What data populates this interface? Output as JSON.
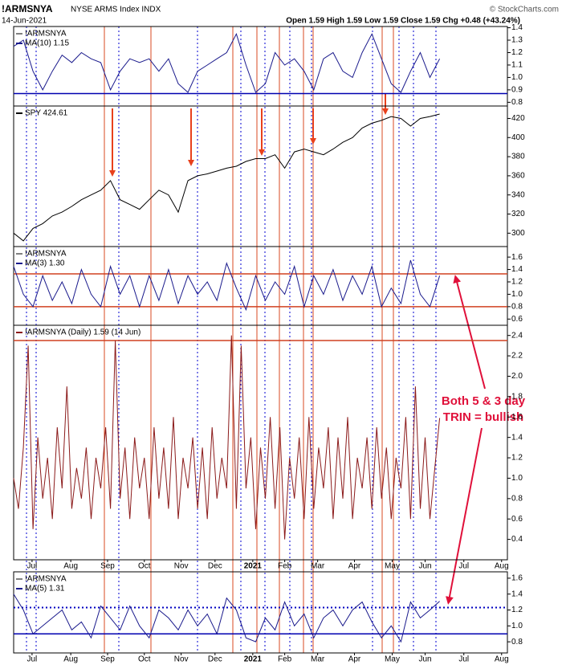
{
  "header": {
    "symbol": "!ARMSNYA",
    "name": "NYSE ARMS Index INDX",
    "date": "14-Jun-2021",
    "quote": "Open 1.59  High 1.59  Low 1.59  Close 1.59  Chg +0.48 (+43.24%)",
    "watermark": "© StockCharts.com"
  },
  "annotation": [
    "Both 5 & 3 day",
    "TRIN = bullish"
  ],
  "chart_data": [
    {
      "type": "line",
      "label": "!ARMSNYA",
      "xlim": [
        0,
        51
      ],
      "ylim": [
        0.77,
        1.41
      ],
      "yticks": [
        0.8,
        0.9,
        {
          "value": 1,
          "label": "1.0"
        },
        1.1,
        1.2,
        1.3,
        1.4
      ],
      "hlines": [
        {
          "value": 0.87,
          "color": "#0000b0",
          "style": "solid"
        }
      ],
      "series": [
        {
          "name": "MA(10) 1.15",
          "color": "#1a1a8c",
          "values": [
            1.25,
            1.3,
            1.05,
            0.9,
            1.05,
            1.18,
            1.12,
            1.2,
            1.15,
            1.12,
            0.9,
            1.05,
            1.15,
            1.12,
            1.15,
            1.05,
            1.15,
            0.95,
            0.88,
            1.05,
            1.1,
            1.15,
            1.2,
            1.35,
            1.1,
            0.88,
            0.95,
            1.2,
            1.1,
            1.15,
            1.05,
            0.9,
            1.15,
            1.2,
            1.05,
            1.0,
            1.2,
            1.35,
            1.15,
            0.95,
            0.88,
            1.05,
            1.2,
            1.0,
            1.15
          ]
        }
      ]
    },
    {
      "type": "line",
      "xlim": [
        0,
        51
      ],
      "ylim": [
        286,
        433
      ],
      "yticks": [
        300,
        320,
        340,
        360,
        380,
        400,
        420
      ],
      "series": [
        {
          "name": "SPY 424.61",
          "color": "#000000",
          "values": [
            300,
            292,
            305,
            310,
            318,
            322,
            328,
            335,
            340,
            345,
            355,
            335,
            330,
            325,
            335,
            345,
            340,
            322,
            355,
            360,
            362,
            365,
            368,
            370,
            375,
            378,
            378,
            382,
            368,
            385,
            388,
            385,
            382,
            388,
            395,
            400,
            410,
            415,
            418,
            422,
            420,
            412,
            420,
            422,
            424.61
          ]
        }
      ]
    },
    {
      "type": "line",
      "label": "!ARMSNYA",
      "xlim": [
        0,
        51
      ],
      "ylim": [
        0.5,
        1.77
      ],
      "yticks": [
        0.6,
        0.8,
        {
          "value": 1,
          "label": "1.0"
        },
        1.2,
        1.4,
        1.6
      ],
      "hlines": [
        {
          "value": 1.33,
          "color": "#d04020",
          "style": "solid"
        },
        {
          "value": 0.8,
          "color": "#d04020",
          "style": "solid"
        }
      ],
      "series": [
        {
          "name": "MA(3) 1.30",
          "color": "#1a1a8c",
          "values": [
            1.45,
            1.0,
            0.8,
            1.3,
            0.9,
            1.2,
            0.85,
            1.4,
            1.0,
            0.8,
            1.45,
            1.0,
            1.3,
            0.8,
            1.3,
            0.9,
            1.4,
            0.85,
            1.3,
            1.0,
            1.2,
            0.9,
            1.5,
            1.1,
            0.75,
            1.3,
            0.9,
            1.2,
            1.0,
            1.45,
            0.8,
            1.3,
            1.0,
            1.4,
            0.9,
            1.3,
            1.0,
            1.45,
            0.8,
            1.1,
            0.85,
            1.55,
            1.0,
            0.8,
            1.3
          ]
        }
      ]
    },
    {
      "type": "line",
      "xlim": [
        0,
        102
      ],
      "ylim": [
        0.2,
        2.5
      ],
      "yticks": [
        0.4,
        0.6,
        0.8,
        {
          "value": 1,
          "label": "1.0"
        },
        1.2,
        1.4,
        1.6,
        1.8,
        {
          "value": 2,
          "label": "2.0"
        },
        2.2,
        2.4
      ],
      "hlines": [
        {
          "value": 2.35,
          "color": "#d04020",
          "style": "solid"
        }
      ],
      "xticks": [
        {
          "value": 3.8,
          "label": "Jul"
        },
        {
          "value": 11.8,
          "label": "Aug"
        },
        {
          "value": 19.4,
          "label": "Sep"
        },
        {
          "value": 27,
          "label": "Oct"
        },
        {
          "value": 34.6,
          "label": "Nov"
        },
        {
          "value": 41.6,
          "label": "Dec"
        },
        {
          "value": 49.4,
          "label": "2021"
        },
        {
          "value": 56,
          "label": "Feb"
        },
        {
          "value": 62.8,
          "label": "Mar"
        },
        {
          "value": 70.4,
          "label": "Apr"
        },
        {
          "value": 78.2,
          "label": "May"
        },
        {
          "value": 85,
          "label": "Jun"
        },
        {
          "value": 93,
          "label": "Jul"
        },
        {
          "value": 100.8,
          "label": "Aug"
        }
      ],
      "series": [
        {
          "name": "!ARMSNYA (Daily) 1.59 (14 Jun)",
          "color": "#8b1a1a",
          "values": [
            1.0,
            0.7,
            1.3,
            2.3,
            0.5,
            1.4,
            0.8,
            1.2,
            0.6,
            1.5,
            0.9,
            1.9,
            0.7,
            1.1,
            0.8,
            1.3,
            0.6,
            1.2,
            0.9,
            1.5,
            0.7,
            2.35,
            0.8,
            1.3,
            0.6,
            1.4,
            0.9,
            1.2,
            0.6,
            1.5,
            0.8,
            1.3,
            0.7,
            1.6,
            0.6,
            1.2,
            0.9,
            1.4,
            0.7,
            1.3,
            0.6,
            1.5,
            0.8,
            1.2,
            0.9,
            2.4,
            0.7,
            2.3,
            0.9,
            1.4,
            0.5,
            1.3,
            0.8,
            1.6,
            0.7,
            1.5,
            0.4,
            1.2,
            0.8,
            1.4,
            0.6,
            1.6,
            0.7,
            1.3,
            0.9,
            1.5,
            0.6,
            1.4,
            0.8,
            1.6,
            0.6,
            1.2,
            0.9,
            1.4,
            0.7,
            1.5,
            0.8,
            1.3,
            0.6,
            1.2,
            0.9,
            1.6,
            0.6,
            1.9,
            0.7,
            1.4,
            0.6,
            1.1,
            1.59
          ]
        }
      ]
    },
    {
      "type": "line",
      "label": "!ARMSNYA",
      "xlim": [
        0,
        51
      ],
      "ylim": [
        0.66,
        1.68
      ],
      "yticks": [
        0.8,
        {
          "value": 1,
          "label": "1.0"
        },
        1.2,
        1.4,
        1.6
      ],
      "hlines": [
        {
          "value": 1.23,
          "color": "#0000c0",
          "style": "dotted"
        },
        {
          "value": 0.9,
          "color": "#0000b0",
          "style": "solid"
        }
      ],
      "xticks": [
        {
          "value": 1.9,
          "label": "Jul"
        },
        {
          "value": 5.9,
          "label": "Aug"
        },
        {
          "value": 9.7,
          "label": "Sep"
        },
        {
          "value": 13.5,
          "label": "Oct"
        },
        {
          "value": 17.3,
          "label": "Nov"
        },
        {
          "value": 20.8,
          "label": "Dec"
        },
        {
          "value": 24.7,
          "label": "2021"
        },
        {
          "value": 28,
          "label": "Feb"
        },
        {
          "value": 31.4,
          "label": "Mar"
        },
        {
          "value": 35.2,
          "label": "Apr"
        },
        {
          "value": 39.1,
          "label": "May"
        },
        {
          "value": 42.5,
          "label": "Jun"
        },
        {
          "value": 46.5,
          "label": "Jul"
        },
        {
          "value": 50.4,
          "label": "Aug"
        }
      ],
      "series": [
        {
          "name": "MA(5) 1.31",
          "color": "#1a1a8c",
          "values": [
            1.4,
            1.2,
            0.9,
            1.0,
            1.1,
            1.2,
            0.95,
            1.05,
            0.85,
            1.25,
            1.1,
            0.95,
            1.25,
            1.0,
            0.85,
            1.2,
            1.1,
            0.95,
            1.2,
            1.0,
            1.15,
            0.9,
            1.35,
            1.2,
            0.85,
            0.8,
            1.1,
            0.95,
            1.3,
            1.0,
            1.15,
            0.85,
            1.1,
            1.2,
            1.0,
            1.2,
            1.3,
            1.05,
            0.85,
            1.0,
            0.8,
            1.3,
            1.1,
            1.2,
            1.31
          ]
        }
      ]
    }
  ]
}
